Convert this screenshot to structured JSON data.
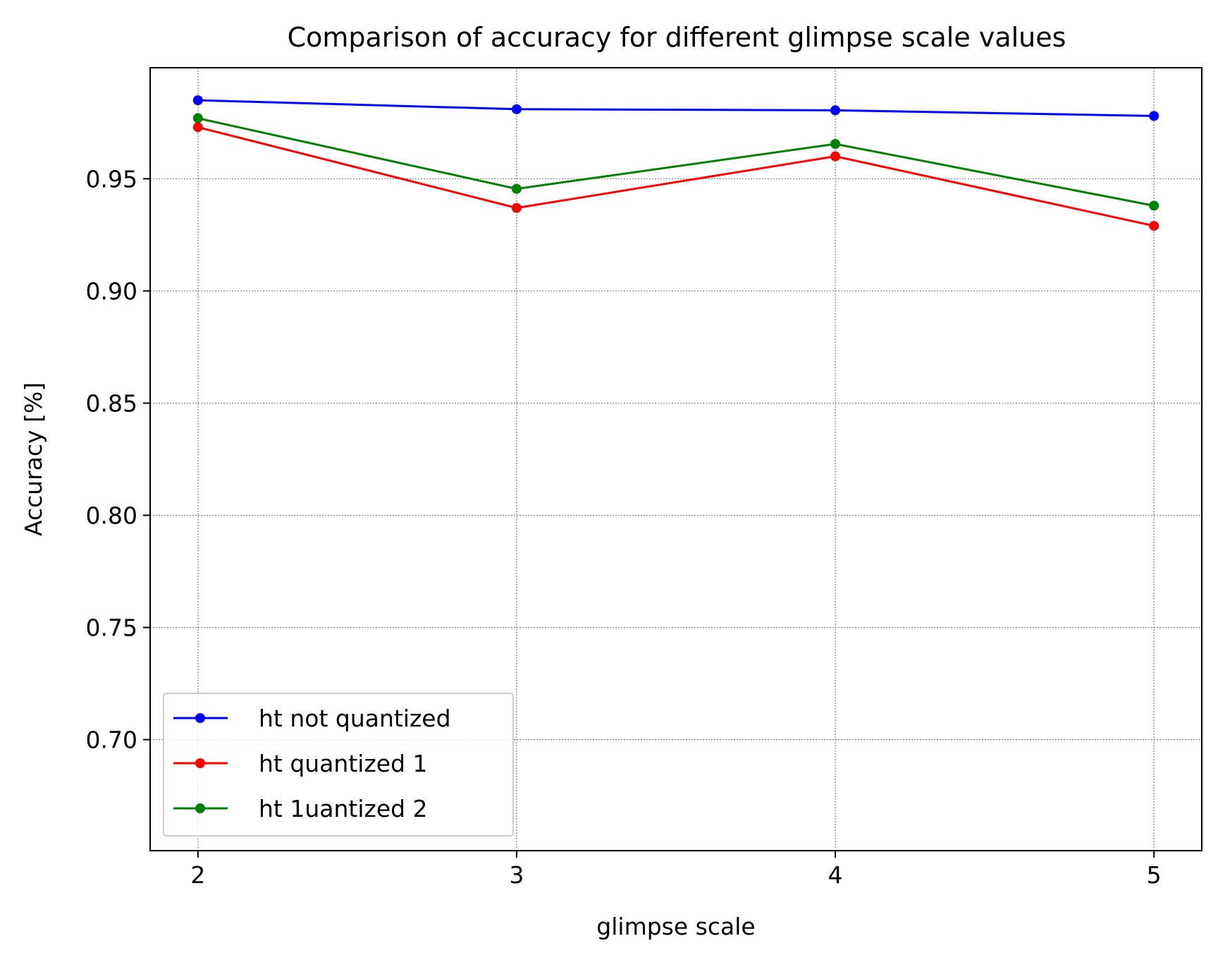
{
  "chart_data": {
    "type": "line",
    "title": "Comparison of accuracy for different glimpse scale values",
    "xlabel": "glimpse scale",
    "ylabel": "Accuracy [%]",
    "x": [
      2,
      3,
      4,
      5
    ],
    "xticks": [
      "2",
      "3",
      "4",
      "5"
    ],
    "xlim": [
      1.85,
      5.15
    ],
    "yticks": [
      "0.70",
      "0.75",
      "0.80",
      "0.85",
      "0.90",
      "0.95"
    ],
    "ytick_values": [
      0.7,
      0.75,
      0.8,
      0.85,
      0.9,
      0.95
    ],
    "ylim": [
      0.6505,
      0.9995
    ],
    "grid": true,
    "legend_position": "lower-left",
    "series": [
      {
        "name": "ht not quantized",
        "color": "#0000ff",
        "values": [
          0.985,
          0.981,
          0.9805,
          0.978
        ]
      },
      {
        "name": "ht quantized 1",
        "color": "#ff0000",
        "values": [
          0.973,
          0.937,
          0.96,
          0.929
        ]
      },
      {
        "name": "ht 1uantized 2",
        "color": "#008000",
        "values": [
          0.977,
          0.9455,
          0.9655,
          0.938
        ]
      }
    ]
  }
}
